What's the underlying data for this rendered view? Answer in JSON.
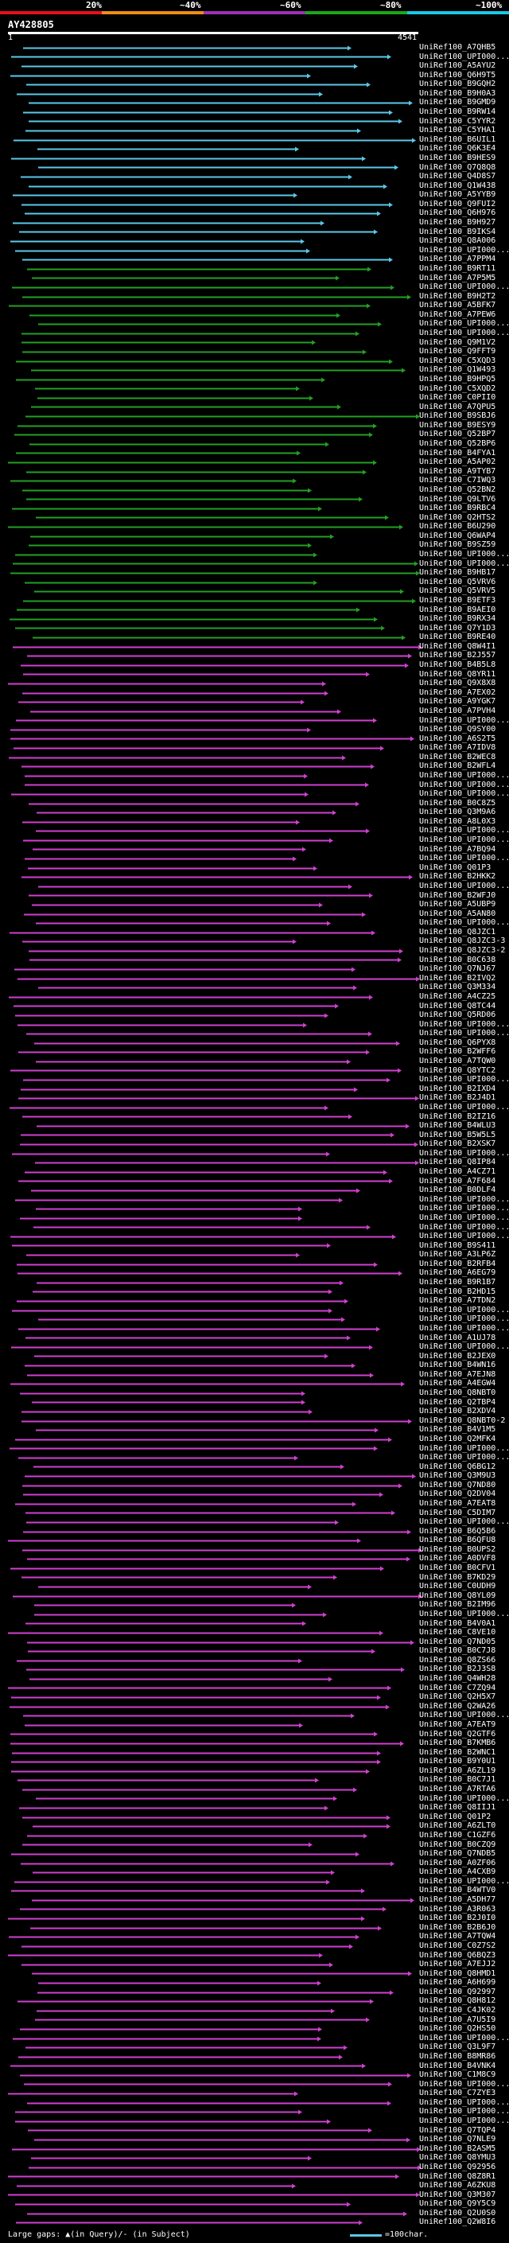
{
  "query": {
    "name": "AY428805",
    "start": "1",
    "end": "4541",
    "length": 4541
  },
  "scale": {
    "labels": [
      "20%",
      "~40%",
      "~60%",
      "~80%",
      "~100%"
    ],
    "colors": [
      "#e8101a",
      "#f08c1a",
      "#9c30b8",
      "#1aa81a",
      "#1ac8e8"
    ]
  },
  "colors": {
    "cyan": "#5bc8e8",
    "green": "#22a022",
    "magenta": "#d040d0",
    "query": "#ffffff",
    "background": "#000000"
  },
  "footer": {
    "gaps": "Large gaps: ▲(in Query)/- (in Subject)",
    "key": "=100char."
  },
  "chart_data": {
    "type": "alignment",
    "x_range": [
      1,
      4541
    ],
    "hits": [
      {
        "label": "UniRef100_A7QHB5",
        "color": "cyan"
      },
      {
        "label": "UniRef100_UPI000...",
        "color": "cyan"
      },
      {
        "label": "UniRef100_A5AYU2",
        "color": "cyan"
      },
      {
        "label": "UniRef100_Q6H9T5",
        "color": "cyan"
      },
      {
        "label": "UniRef100_B9GQH2",
        "color": "cyan"
      },
      {
        "label": "UniRef100_B9H0A3",
        "color": "cyan"
      },
      {
        "label": "UniRef100_B9GMD9",
        "color": "cyan"
      },
      {
        "label": "UniRef100_B9RW14",
        "color": "cyan"
      },
      {
        "label": "UniRef100_C5YYR2",
        "color": "cyan"
      },
      {
        "label": "UniRef100_C5YHA1",
        "color": "cyan"
      },
      {
        "label": "UniRef100_B6UIL1",
        "color": "cyan"
      },
      {
        "label": "UniRef100_Q6K3E4",
        "color": "cyan"
      },
      {
        "label": "UniRef100_B9HES9",
        "color": "cyan"
      },
      {
        "label": "UniRef100_Q7Q8Q8",
        "color": "cyan"
      },
      {
        "label": "UniRef100_Q4D8S7",
        "color": "cyan"
      },
      {
        "label": "UniRef100_Q1W438",
        "color": "cyan"
      },
      {
        "label": "UniRef100_A5YYB9",
        "color": "cyan"
      },
      {
        "label": "UniRef100_Q9FUI2",
        "color": "cyan"
      },
      {
        "label": "UniRef100_Q6H976",
        "color": "cyan"
      },
      {
        "label": "UniRef100_B9H927",
        "color": "cyan"
      },
      {
        "label": "UniRef100_B9IKS4",
        "color": "cyan"
      },
      {
        "label": "UniRef100_Q8A006",
        "color": "cyan"
      },
      {
        "label": "UniRef100_UPI000...",
        "color": "cyan"
      },
      {
        "label": "UniRef100_A7PPM4",
        "color": "cyan"
      },
      {
        "label": "UniRef100_B9RT11",
        "color": "green"
      },
      {
        "label": "UniRef100_A7P5M5",
        "color": "green"
      },
      {
        "label": "UniRef100_UPI000...",
        "color": "green"
      },
      {
        "label": "UniRef100_B9H2T2",
        "color": "green"
      },
      {
        "label": "UniRef100_A5BFK7",
        "color": "green"
      },
      {
        "label": "UniRef100_A7PEW6",
        "color": "green"
      },
      {
        "label": "UniRef100_UPI000...",
        "color": "green"
      },
      {
        "label": "UniRef100_UPI000...",
        "color": "green"
      },
      {
        "label": "UniRef100_Q9M1V2",
        "color": "green"
      },
      {
        "label": "UniRef100_Q9FFT9",
        "color": "green"
      },
      {
        "label": "UniRef100_C5XQD3",
        "color": "green"
      },
      {
        "label": "UniRef100_Q1W493",
        "color": "green"
      },
      {
        "label": "UniRef100_B9HPQ5",
        "color": "green"
      },
      {
        "label": "UniRef100_C5XQD2",
        "color": "green"
      },
      {
        "label": "UniRef100_C0PII0",
        "color": "green"
      },
      {
        "label": "UniRef100_A7QPU5",
        "color": "green"
      },
      {
        "label": "UniRef100_B9SBJ6",
        "color": "green"
      },
      {
        "label": "UniRef100_B9ESY9",
        "color": "green"
      },
      {
        "label": "UniRef100_Q52BP7",
        "color": "green"
      },
      {
        "label": "UniRef100_Q52BP6",
        "color": "green"
      },
      {
        "label": "UniRef100_B4FYA1",
        "color": "green"
      },
      {
        "label": "UniRef100_A5AP02",
        "color": "green"
      },
      {
        "label": "UniRef100_A9TYB7",
        "color": "green"
      },
      {
        "label": "UniRef100_C7IWQ3",
        "color": "green"
      },
      {
        "label": "UniRef100_Q52BN2",
        "color": "green"
      },
      {
        "label": "UniRef100_Q9LTV6",
        "color": "green"
      },
      {
        "label": "UniRef100_B9RBC4",
        "color": "green"
      },
      {
        "label": "UniRef100_Q2HTS2",
        "color": "green"
      },
      {
        "label": "UniRef100_B6U290",
        "color": "green"
      },
      {
        "label": "UniRef100_Q6WAP4",
        "color": "green"
      },
      {
        "label": "UniRef100_B9SZ59",
        "color": "green"
      },
      {
        "label": "UniRef100_UPI000...",
        "color": "green"
      },
      {
        "label": "UniRef100_UPI000...",
        "color": "green"
      },
      {
        "label": "UniRef100_B9HB17",
        "color": "green"
      },
      {
        "label": "UniRef100_Q5VRV6",
        "color": "green"
      },
      {
        "label": "UniRef100_Q5VRV5",
        "color": "green"
      },
      {
        "label": "UniRef100_B9ETF3",
        "color": "green"
      },
      {
        "label": "UniRef100_B9AEI0",
        "color": "green"
      },
      {
        "label": "UniRef100_B9RX34",
        "color": "green"
      },
      {
        "label": "UniRef100_Q7Y1D3",
        "color": "green"
      },
      {
        "label": "UniRef100_B9RE40",
        "color": "green"
      },
      {
        "label": "UniRef100_Q8W4I1",
        "color": "magenta"
      },
      {
        "label": "UniRef100_B2J557",
        "color": "magenta"
      },
      {
        "label": "UniRef100_B4B5L8",
        "color": "magenta"
      },
      {
        "label": "UniRef100_Q8YR11",
        "color": "magenta"
      },
      {
        "label": "UniRef100_Q9X8X8",
        "color": "magenta"
      },
      {
        "label": "UniRef100_A7EX02",
        "color": "magenta"
      },
      {
        "label": "UniRef100_A9YGK7",
        "color": "magenta"
      },
      {
        "label": "UniRef100_A7PVH4",
        "color": "magenta"
      },
      {
        "label": "UniRef100_UPI000...",
        "color": "magenta"
      },
      {
        "label": "UniRef100_Q9SY00",
        "color": "magenta"
      },
      {
        "label": "UniRef100_A6S2T5",
        "color": "magenta"
      },
      {
        "label": "UniRef100_A7IDV8",
        "color": "magenta"
      },
      {
        "label": "UniRef100_B2WEC8",
        "color": "magenta"
      },
      {
        "label": "UniRef100_B2WFL4",
        "color": "magenta"
      },
      {
        "label": "UniRef100_UPI000...",
        "color": "magenta"
      },
      {
        "label": "UniRef100_UPI000...",
        "color": "magenta"
      },
      {
        "label": "UniRef100_UPI000...",
        "color": "magenta"
      },
      {
        "label": "UniRef100_B0C8Z5",
        "color": "magenta"
      },
      {
        "label": "UniRef100_Q3M9A6",
        "color": "magenta"
      },
      {
        "label": "UniRef100_A8L0X3",
        "color": "magenta"
      },
      {
        "label": "UniRef100_UPI000...",
        "color": "magenta"
      },
      {
        "label": "UniRef100_UPI000...",
        "color": "magenta"
      },
      {
        "label": "UniRef100_A7BQ94",
        "color": "magenta"
      },
      {
        "label": "UniRef100_UPI000...",
        "color": "magenta"
      },
      {
        "label": "UniRef100_Q01P3",
        "color": "magenta"
      },
      {
        "label": "UniRef100_B2HKK2",
        "color": "magenta"
      },
      {
        "label": "UniRef100_UPI000...",
        "color": "magenta"
      },
      {
        "label": "UniRef100_B2WFJ0",
        "color": "magenta"
      },
      {
        "label": "UniRef100_A5UBP9",
        "color": "magenta"
      },
      {
        "label": "UniRef100_A5AN80",
        "color": "magenta"
      },
      {
        "label": "UniRef100_UPI000...",
        "color": "magenta"
      },
      {
        "label": "UniRef100_Q8JZC1",
        "color": "magenta"
      },
      {
        "label": "UniRef100_Q8JZC3-3",
        "color": "magenta"
      },
      {
        "label": "UniRef100_Q8JZC3-2",
        "color": "magenta"
      },
      {
        "label": "UniRef100_B0C638",
        "color": "magenta"
      },
      {
        "label": "UniRef100_Q7NJ67",
        "color": "magenta"
      },
      {
        "label": "UniRef100_B2IVQ2",
        "color": "magenta"
      },
      {
        "label": "UniRef100_Q3M334",
        "color": "magenta"
      },
      {
        "label": "UniRef100_A4CZ25",
        "color": "magenta"
      },
      {
        "label": "UniRef100_Q8TC44",
        "color": "magenta"
      },
      {
        "label": "UniRef100_Q5RD06",
        "color": "magenta"
      },
      {
        "label": "UniRef100_UPI000...",
        "color": "magenta"
      },
      {
        "label": "UniRef100_UPI000...",
        "color": "magenta"
      },
      {
        "label": "UniRef100_Q6PYX8",
        "color": "magenta"
      },
      {
        "label": "UniRef100_B2WFF6",
        "color": "magenta"
      },
      {
        "label": "UniRef100_A7TQW0",
        "color": "magenta"
      },
      {
        "label": "UniRef100_Q8YTC2",
        "color": "magenta"
      },
      {
        "label": "UniRef100_UPI000...",
        "color": "magenta"
      },
      {
        "label": "UniRef100_B2IXD4",
        "color": "magenta"
      },
      {
        "label": "UniRef100_B2J4D1",
        "color": "magenta"
      },
      {
        "label": "UniRef100_UPI000...",
        "color": "magenta"
      },
      {
        "label": "UniRef100_B2IZ16",
        "color": "magenta"
      },
      {
        "label": "UniRef100_B4WLU3",
        "color": "magenta"
      },
      {
        "label": "UniRef100_B5W5L5",
        "color": "magenta"
      },
      {
        "label": "UniRef100_B2XSK7",
        "color": "magenta"
      },
      {
        "label": "UniRef100_UPI000...",
        "color": "magenta"
      },
      {
        "label": "UniRef100_Q8IP84",
        "color": "magenta"
      },
      {
        "label": "UniRef100_A4CZ71",
        "color": "magenta"
      },
      {
        "label": "UniRef100_A7F684",
        "color": "magenta"
      },
      {
        "label": "UniRef100_B0DLF4",
        "color": "magenta"
      },
      {
        "label": "UniRef100_UPI000...",
        "color": "magenta"
      },
      {
        "label": "UniRef100_UPI000...",
        "color": "magenta"
      },
      {
        "label": "UniRef100_UPI000...",
        "color": "magenta"
      },
      {
        "label": "UniRef100_UPI000...",
        "color": "magenta"
      },
      {
        "label": "UniRef100_UPI000...",
        "color": "magenta"
      },
      {
        "label": "UniRef100_B9S411",
        "color": "magenta"
      },
      {
        "label": "UniRef100_A3LP6Z",
        "color": "magenta"
      },
      {
        "label": "UniRef100_B2RFB4",
        "color": "magenta"
      },
      {
        "label": "UniRef100_A6EG79",
        "color": "magenta"
      },
      {
        "label": "UniRef100_B9R1B7",
        "color": "magenta"
      },
      {
        "label": "UniRef100_B2HD15",
        "color": "magenta"
      },
      {
        "label": "UniRef100_A7TDN2",
        "color": "magenta"
      },
      {
        "label": "UniRef100_UPI000...",
        "color": "magenta"
      },
      {
        "label": "UniRef100_UPI000...",
        "color": "magenta"
      },
      {
        "label": "UniRef100_UPI000...",
        "color": "magenta"
      },
      {
        "label": "UniRef100_A1UJ78",
        "color": "magenta"
      },
      {
        "label": "UniRef100_UPI000...",
        "color": "magenta"
      },
      {
        "label": "UniRef100_B2JEX0",
        "color": "magenta"
      },
      {
        "label": "UniRef100_B4WN16",
        "color": "magenta"
      },
      {
        "label": "UniRef100_A7EJN8",
        "color": "magenta"
      },
      {
        "label": "UniRef100_A4EGW4",
        "color": "magenta"
      },
      {
        "label": "UniRef100_Q8NBT0",
        "color": "magenta"
      },
      {
        "label": "UniRef100_Q2TBP4",
        "color": "magenta"
      },
      {
        "label": "UniRef100_B2XDV4",
        "color": "magenta"
      },
      {
        "label": "UniRef100_Q8NBT0-2",
        "color": "magenta"
      },
      {
        "label": "UniRef100_B4V1M5",
        "color": "magenta"
      },
      {
        "label": "UniRef100_Q2MFK4",
        "color": "magenta"
      },
      {
        "label": "UniRef100_UPI000...",
        "color": "magenta"
      },
      {
        "label": "UniRef100_UPI000...",
        "color": "magenta"
      },
      {
        "label": "UniRef100_Q6BG12",
        "color": "magenta"
      },
      {
        "label": "UniRef100_Q3M9U3",
        "color": "magenta"
      },
      {
        "label": "UniRef100_Q7ND80",
        "color": "magenta"
      },
      {
        "label": "UniRef100_Q2DV04",
        "color": "magenta"
      },
      {
        "label": "UniRef100_A7EAT8",
        "color": "magenta"
      },
      {
        "label": "UniRef100_C5DIM7",
        "color": "magenta"
      },
      {
        "label": "UniRef100_UPI000...",
        "color": "magenta"
      },
      {
        "label": "UniRef100_B6Q5B6",
        "color": "magenta"
      },
      {
        "label": "UniRef100_B6QFU8",
        "color": "magenta"
      },
      {
        "label": "UniRef100_B0UPS2",
        "color": "magenta"
      },
      {
        "label": "UniRef100_A0DVF8",
        "color": "magenta"
      },
      {
        "label": "UniRef100_B0CFV1",
        "color": "magenta"
      },
      {
        "label": "UniRef100_B7KD29",
        "color": "magenta"
      },
      {
        "label": "UniRef100_C0UDH9",
        "color": "magenta"
      },
      {
        "label": "UniRef100_Q8YL09",
        "color": "magenta"
      },
      {
        "label": "UniRef100_B2IM96",
        "color": "magenta"
      },
      {
        "label": "UniRef100_UPI000...",
        "color": "magenta"
      },
      {
        "label": "UniRef100_B4V0A1",
        "color": "magenta"
      },
      {
        "label": "UniRef100_C8VE10",
        "color": "magenta"
      },
      {
        "label": "UniRef100_Q7ND05",
        "color": "magenta"
      },
      {
        "label": "UniRef100_B0C7J8",
        "color": "magenta"
      },
      {
        "label": "UniRef100_Q8ZS66",
        "color": "magenta"
      },
      {
        "label": "UniRef100_B2J3S8",
        "color": "magenta"
      },
      {
        "label": "UniRef100_Q4WH28",
        "color": "magenta"
      },
      {
        "label": "UniRef100_C7ZQ94",
        "color": "magenta"
      },
      {
        "label": "UniRef100_Q2H5X7",
        "color": "magenta"
      },
      {
        "label": "UniRef100_Q2WA26",
        "color": "magenta"
      },
      {
        "label": "UniRef100_UPI000...",
        "color": "magenta"
      },
      {
        "label": "UniRef100_A7EAT9",
        "color": "magenta"
      },
      {
        "label": "UniRef100_Q2GTF6",
        "color": "magenta"
      },
      {
        "label": "UniRef100_B7KMB6",
        "color": "magenta"
      },
      {
        "label": "UniRef100_B2WNC1",
        "color": "magenta"
      },
      {
        "label": "UniRef100_B9Y0U1",
        "color": "magenta"
      },
      {
        "label": "UniRef100_A6ZL19",
        "color": "magenta"
      },
      {
        "label": "UniRef100_B0C7J1",
        "color": "magenta"
      },
      {
        "label": "UniRef100_A7RTA6",
        "color": "magenta"
      },
      {
        "label": "UniRef100_UPI000...",
        "color": "magenta"
      },
      {
        "label": "UniRef100_Q8IIJ1",
        "color": "magenta"
      },
      {
        "label": "UniRef100_Q01P2",
        "color": "magenta"
      },
      {
        "label": "UniRef100_A6ZLT0",
        "color": "magenta"
      },
      {
        "label": "UniRef100_C1GZF6",
        "color": "magenta"
      },
      {
        "label": "UniRef100_B0CZQ9",
        "color": "magenta"
      },
      {
        "label": "UniRef100_Q7NDB5",
        "color": "magenta"
      },
      {
        "label": "UniRef100_A0ZF06",
        "color": "magenta"
      },
      {
        "label": "UniRef100_A4CXB9",
        "color": "magenta"
      },
      {
        "label": "UniRef100_UPI000...",
        "color": "magenta"
      },
      {
        "label": "UniRef100_B4WTV0",
        "color": "magenta"
      },
      {
        "label": "UniRef100_A5DH77",
        "color": "magenta"
      },
      {
        "label": "UniRef100_A3R063",
        "color": "magenta"
      },
      {
        "label": "UniRef100_B2J0I0",
        "color": "magenta"
      },
      {
        "label": "UniRef100_B2B6J0",
        "color": "magenta"
      },
      {
        "label": "UniRef100_A7TQW4",
        "color": "magenta"
      },
      {
        "label": "UniRef100_C0Z7S2",
        "color": "magenta"
      },
      {
        "label": "UniRef100_Q6BQZ3",
        "color": "magenta"
      },
      {
        "label": "UniRef100_A7EJJ2",
        "color": "magenta"
      },
      {
        "label": "UniRef100_Q8HMD1",
        "color": "magenta"
      },
      {
        "label": "UniRef100_A6H699",
        "color": "magenta"
      },
      {
        "label": "UniRef100_Q92997",
        "color": "magenta"
      },
      {
        "label": "UniRef100_Q8H812",
        "color": "magenta"
      },
      {
        "label": "UniRef100_C4JK02",
        "color": "magenta"
      },
      {
        "label": "UniRef100_A7U5I9",
        "color": "magenta"
      },
      {
        "label": "UniRef100_Q2HS50",
        "color": "magenta"
      },
      {
        "label": "UniRef100_UPI000...",
        "color": "magenta"
      },
      {
        "label": "UniRef100_Q3L9F7",
        "color": "magenta"
      },
      {
        "label": "UniRef100_B8MR86",
        "color": "magenta"
      },
      {
        "label": "UniRef100_B4VNK4",
        "color": "magenta"
      },
      {
        "label": "UniRef100_C1M8C9",
        "color": "magenta"
      },
      {
        "label": "UniRef100_UPI000...",
        "color": "magenta"
      },
      {
        "label": "UniRef100_C7ZYE3",
        "color": "magenta"
      },
      {
        "label": "UniRef100_UPI000...",
        "color": "magenta"
      },
      {
        "label": "UniRef100_UPI000...",
        "color": "magenta"
      },
      {
        "label": "UniRef100_UPI000...",
        "color": "magenta"
      },
      {
        "label": "UniRef100_Q7TQP4",
        "color": "magenta"
      },
      {
        "label": "UniRef100_Q7NLE9",
        "color": "magenta"
      },
      {
        "label": "UniRef100_B2ASM5",
        "color": "magenta"
      },
      {
        "label": "UniRef100_Q8YMU3",
        "color": "magenta"
      },
      {
        "label": "UniRef100_Q92956",
        "color": "magenta"
      },
      {
        "label": "UniRef100_Q8Z8R1",
        "color": "magenta"
      },
      {
        "label": "UniRef100_A6ZKU8",
        "color": "magenta"
      },
      {
        "label": "UniRef100_Q3M307",
        "color": "magenta"
      },
      {
        "label": "UniRef100_Q9Y5C9",
        "color": "magenta"
      },
      {
        "label": "UniRef100_Q2U0S0",
        "color": "magenta"
      },
      {
        "label": "UniRef100_Q2W8I6",
        "color": "magenta"
      }
    ]
  }
}
